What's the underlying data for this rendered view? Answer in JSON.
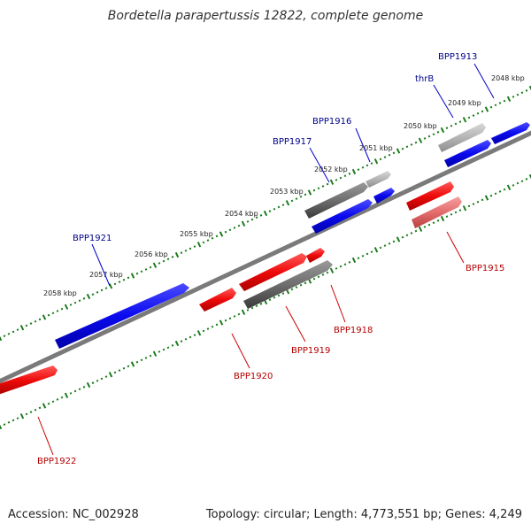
{
  "title": "Bordetella parapertussis 12822, complete genome",
  "footer": {
    "accession": "Accession: NC_002928",
    "summary": "Topology: circular; Length: 4,773,551 bp; Genes: 4,249"
  },
  "colors": {
    "forward": "#0a0aee",
    "reverse": "#ee0a0a",
    "gray": "#6e6e6e",
    "light_gray": "#b4b4b4",
    "light_red": "#e46c6c",
    "backbone": "#7a7a7a",
    "ticks": "#1a7a1a",
    "blue_label": "#00008b",
    "red_label": "#b30000"
  },
  "kbp_labels": [
    "2048 kbp",
    "2049 kbp",
    "2050 kbp",
    "2051 kbp",
    "2052 kbp",
    "2053 kbp",
    "2054 kbp",
    "2055 kbp",
    "2056 kbp",
    "2057 kbp",
    "2058 kbp"
  ],
  "gene_labels": {
    "top": [
      "BPP1913",
      "thrB",
      "BPP1916",
      "BPP1917",
      "BPP1921"
    ],
    "bottom": [
      "BPP1915",
      "BPP1918",
      "BPP1919",
      "BPP1920",
      "BPP1922"
    ]
  }
}
